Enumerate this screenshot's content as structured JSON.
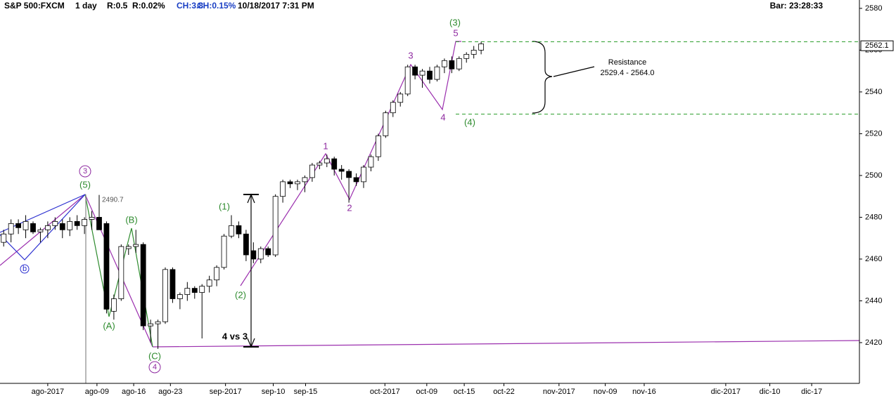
{
  "header": {
    "symbol": "S&P 500:FXCM",
    "interval": "1 day",
    "r": "R:0.5",
    "r_pct": "R:0.02%",
    "ch": "CH:3.8",
    "ch_pct": "CH:0.15%",
    "datetime": "10/18/2017 7:31 PM",
    "bar": "Bar: 23:28:33"
  },
  "chart_data": {
    "type": "candlestick",
    "open": [
      2468,
      2472,
      2477,
      2474,
      2477,
      2473,
      2474,
      2476,
      2477,
      2474,
      2478,
      2476,
      2479,
      2480,
      2477,
      2435,
      2441,
      2465,
      2466,
      2467,
      2428,
      2429,
      2430,
      2455,
      2441,
      2443,
      2446,
      2444,
      2447,
      2450,
      2456,
      2471,
      2476,
      2472,
      2464,
      2460,
      2465,
      2462,
      2490,
      2497,
      2496,
      2497,
      2499,
      2505,
      2506,
      2508,
      2503,
      2502,
      2499,
      2497,
      2504,
      2509,
      2519,
      2530,
      2535,
      2539,
      2552,
      2548,
      2550,
      2546,
      2552,
      2555,
      2551,
      2556,
      2558,
      2560
    ],
    "high": [
      2474,
      2479,
      2479,
      2481,
      2478,
      2475,
      2478,
      2480,
      2479,
      2480,
      2481,
      2480,
      2483,
      2490.7,
      2478,
      2443,
      2467,
      2467,
      2474,
      2468,
      2431,
      2431,
      2456,
      2456,
      2444,
      2449,
      2447,
      2448,
      2452,
      2457,
      2472,
      2481,
      2478,
      2474,
      2468,
      2466,
      2466,
      2491,
      2498,
      2498,
      2498,
      2500,
      2506,
      2507,
      2510,
      2509,
      2505,
      2503,
      2501,
      2505,
      2510,
      2520,
      2531,
      2536,
      2540,
      2553,
      2553,
      2551,
      2552,
      2553,
      2556,
      2557,
      2557,
      2559,
      2562,
      2564
    ],
    "low": [
      2466,
      2468,
      2472,
      2470,
      2472,
      2468,
      2470,
      2474,
      2470,
      2471,
      2474,
      2472,
      2474,
      2474,
      2434,
      2431,
      2440,
      2462,
      2463,
      2426,
      2420,
      2417,
      2429,
      2439,
      2436,
      2440,
      2441,
      2422,
      2444,
      2447,
      2455,
      2470,
      2470,
      2459,
      2458,
      2458,
      2461,
      2461,
      2487,
      2494,
      2493,
      2492,
      2497,
      2503,
      2504,
      2500,
      2498,
      2487,
      2495,
      2494,
      2502,
      2507,
      2518,
      2528,
      2533,
      2538,
      2546,
      2542,
      2544,
      2545,
      2549,
      2549,
      2550,
      2554,
      2556,
      2558
    ],
    "close": [
      2472,
      2477,
      2475,
      2478,
      2473,
      2474,
      2476,
      2478,
      2474,
      2478,
      2476,
      2479,
      2480,
      2474,
      2436,
      2441,
      2466,
      2466,
      2467,
      2428,
      2429,
      2430,
      2455,
      2441,
      2443,
      2446,
      2444,
      2447,
      2450,
      2456,
      2471,
      2476,
      2472,
      2462,
      2460,
      2465,
      2462,
      2490,
      2497,
      2496,
      2497,
      2499,
      2505,
      2506,
      2508,
      2503,
      2502,
      2499,
      2497,
      2504,
      2509,
      2519,
      2530,
      2535,
      2539,
      2552,
      2548,
      2550,
      2546,
      2552,
      2555,
      2551,
      2556,
      2558,
      2560,
      2563
    ],
    "up_color": "#ffffff",
    "down_color": "#000000",
    "xlim": [
      -0.5,
      116.5
    ],
    "xticks": [
      {
        "value": 6.0,
        "label": "ago-2017"
      },
      {
        "value": 12.7,
        "label": "ago-09"
      },
      {
        "value": 17.7,
        "label": "ago-16"
      },
      {
        "value": 22.7,
        "label": "ago-23"
      },
      {
        "value": 30.2,
        "label": "sep-2017"
      },
      {
        "value": 36.7,
        "label": "sep-10"
      },
      {
        "value": 41.1,
        "label": "sep-15"
      },
      {
        "value": 51.9,
        "label": "oct-2017"
      },
      {
        "value": 57.6,
        "label": "oct-09"
      },
      {
        "value": 62.7,
        "label": "oct-15"
      },
      {
        "value": 68.1,
        "label": "oct-22"
      },
      {
        "value": 75.6,
        "label": "nov-2017"
      },
      {
        "value": 81.9,
        "label": "nov-09"
      },
      {
        "value": 87.2,
        "label": "nov-16"
      },
      {
        "value": 98.3,
        "label": "dic-2017"
      },
      {
        "value": 104.3,
        "label": "dic-10"
      },
      {
        "value": 110.0,
        "label": "dic-17"
      }
    ],
    "ylim": [
      2400.5,
      2584
    ],
    "yticks": [
      2420,
      2440,
      2460,
      2480,
      2500,
      2520,
      2540,
      2560,
      2580
    ],
    "last_price": 2562.1,
    "resistance": {
      "high": 2564.0,
      "low": 2529.4,
      "color": "#2e9e2e"
    },
    "annotations": [
      "(3)",
      "5",
      "3",
      "4",
      "(4)",
      "1",
      "2",
      "(1)",
      "(2)",
      "(5)",
      "3",
      "(A)",
      "(B)",
      "(C)",
      "4",
      "b",
      "4 vs 3",
      "2490.7",
      "Resistance",
      "2529.4 - 2564.0"
    ]
  }
}
